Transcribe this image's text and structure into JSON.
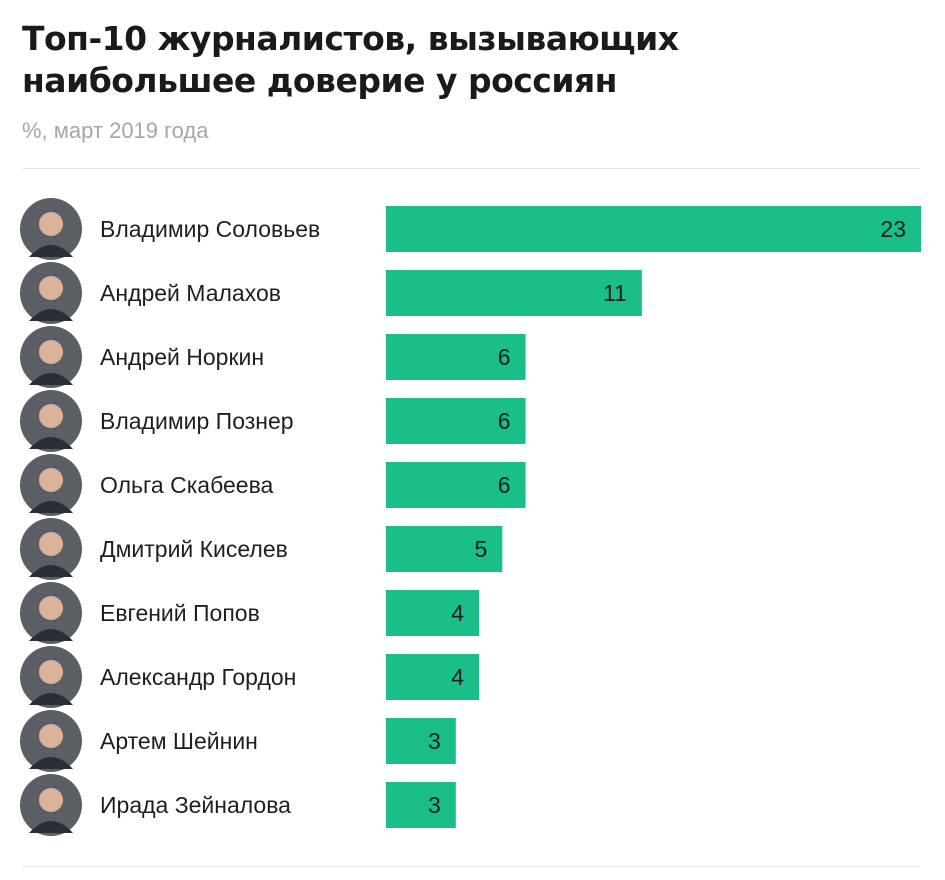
{
  "header": {
    "title": "Топ-10 журналистов, вызывающих наибольшее доверие у россиян",
    "subtitle": "%, март 2019 года"
  },
  "colors": {
    "bar": "#19bf86",
    "avatar_bg": "#5a5f66",
    "avatar_face": "#d9b49a"
  },
  "chart_data": {
    "type": "bar",
    "orientation": "horizontal",
    "title": "Топ-10 журналистов, вызывающих наибольшее доверие у россиян",
    "subtitle": "%, март 2019 года",
    "xlim": [
      0,
      23
    ],
    "grid": false,
    "legend": "none",
    "categories": [
      "Владимир Соловьев",
      "Андрей Малахов",
      "Андрей Норкин",
      "Владимир Познер",
      "Ольга Скабеева",
      "Дмитрий Киселев",
      "Евгений Попов",
      "Александр Гордон",
      "Артем Шейнин",
      "Ирада Зейналова"
    ],
    "values": [
      23,
      11,
      6,
      6,
      6,
      5,
      4,
      4,
      3,
      3
    ],
    "value_labels": [
      "23",
      "11",
      "6",
      "6",
      "6",
      "5",
      "4",
      "4",
      "3",
      "3"
    ]
  }
}
